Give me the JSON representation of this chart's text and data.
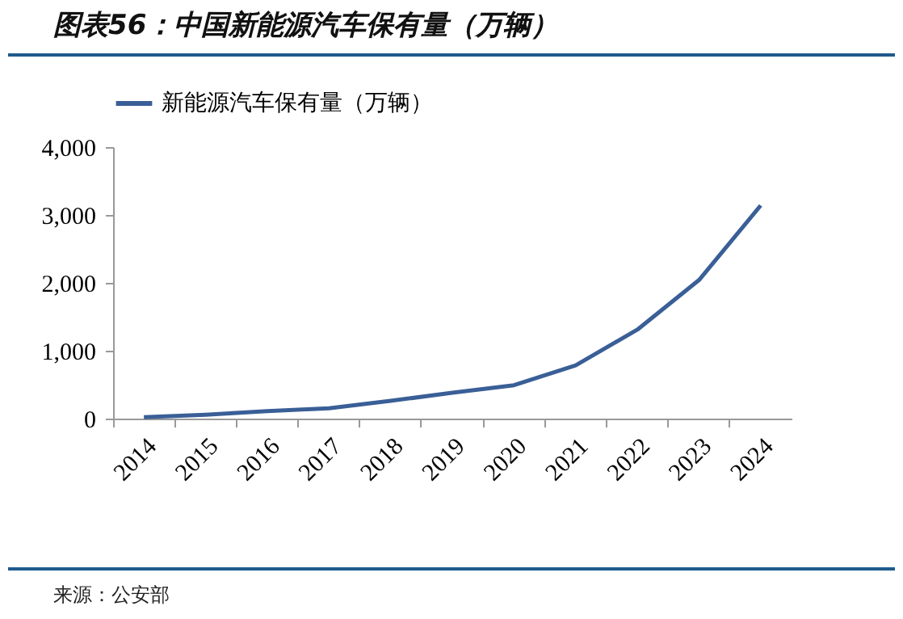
{
  "chart_data": {
    "type": "line",
    "title": "图表56：中国新能源汽车保有量（万辆）",
    "categories": [
      "2014",
      "2015",
      "2016",
      "2017",
      "2018",
      "2019",
      "2020",
      "2021",
      "2022",
      "2023",
      "2024"
    ],
    "series": [
      {
        "name": "新能源汽车保有量（万辆）",
        "color": "#3a5f97",
        "values": [
          22,
          58,
          109,
          153,
          261,
          381,
          492,
          784,
          1310,
          2041,
          3140
        ]
      }
    ],
    "ylim": [
      0,
      4000
    ],
    "yticks": [
      {
        "value": 0,
        "label": "0"
      },
      {
        "value": 1000,
        "label": "1,000"
      },
      {
        "value": 2000,
        "label": "2,000"
      },
      {
        "value": 3000,
        "label": "3,000"
      },
      {
        "value": 4000,
        "label": "4,000"
      }
    ],
    "grid": false,
    "legend": "top",
    "marker": "none",
    "line_style": "solid",
    "annotations": [
      "来源：公安部"
    ]
  }
}
